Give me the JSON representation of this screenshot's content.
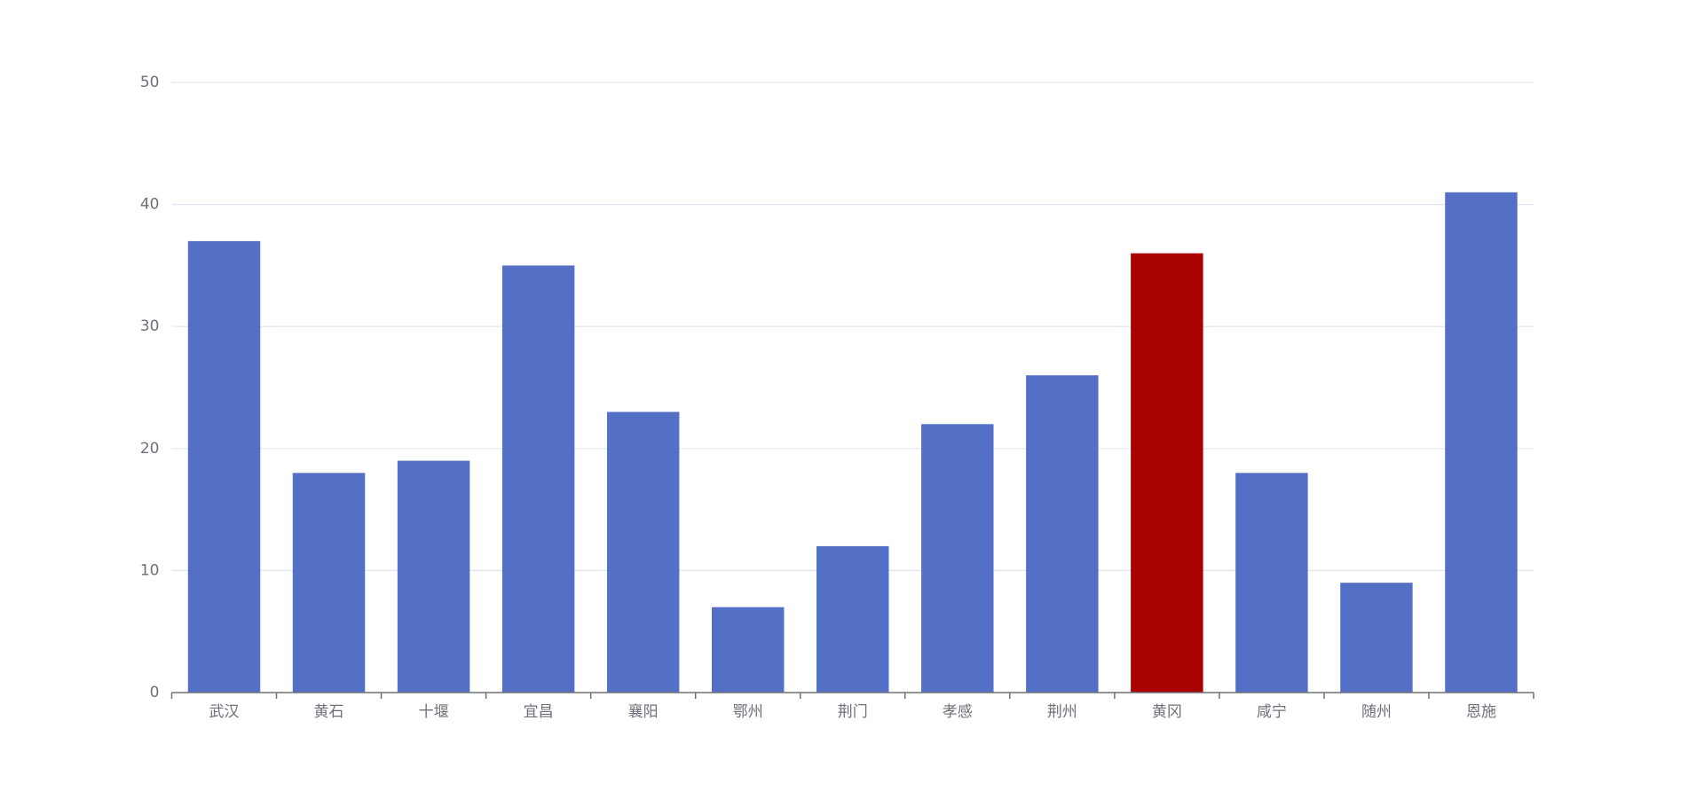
{
  "chart_data": {
    "type": "bar",
    "categories": [
      "武汉",
      "黄石",
      "十堰",
      "宜昌",
      "襄阳",
      "鄂州",
      "荆门",
      "孝感",
      "荆州",
      "黄冈",
      "咸宁",
      "随州",
      "恩施"
    ],
    "values": [
      37,
      18,
      19,
      35,
      23,
      7,
      12,
      22,
      26,
      36,
      18,
      9,
      41
    ],
    "colors": [
      "#5470c6",
      "#5470c6",
      "#5470c6",
      "#5470c6",
      "#5470c6",
      "#5470c6",
      "#5470c6",
      "#5470c6",
      "#5470c6",
      "#a90000",
      "#5470c6",
      "#5470c6",
      "#5470c6"
    ],
    "ylim": [
      0,
      50
    ],
    "yticks": [
      0,
      10,
      20,
      30,
      40,
      50
    ],
    "grid": true
  }
}
